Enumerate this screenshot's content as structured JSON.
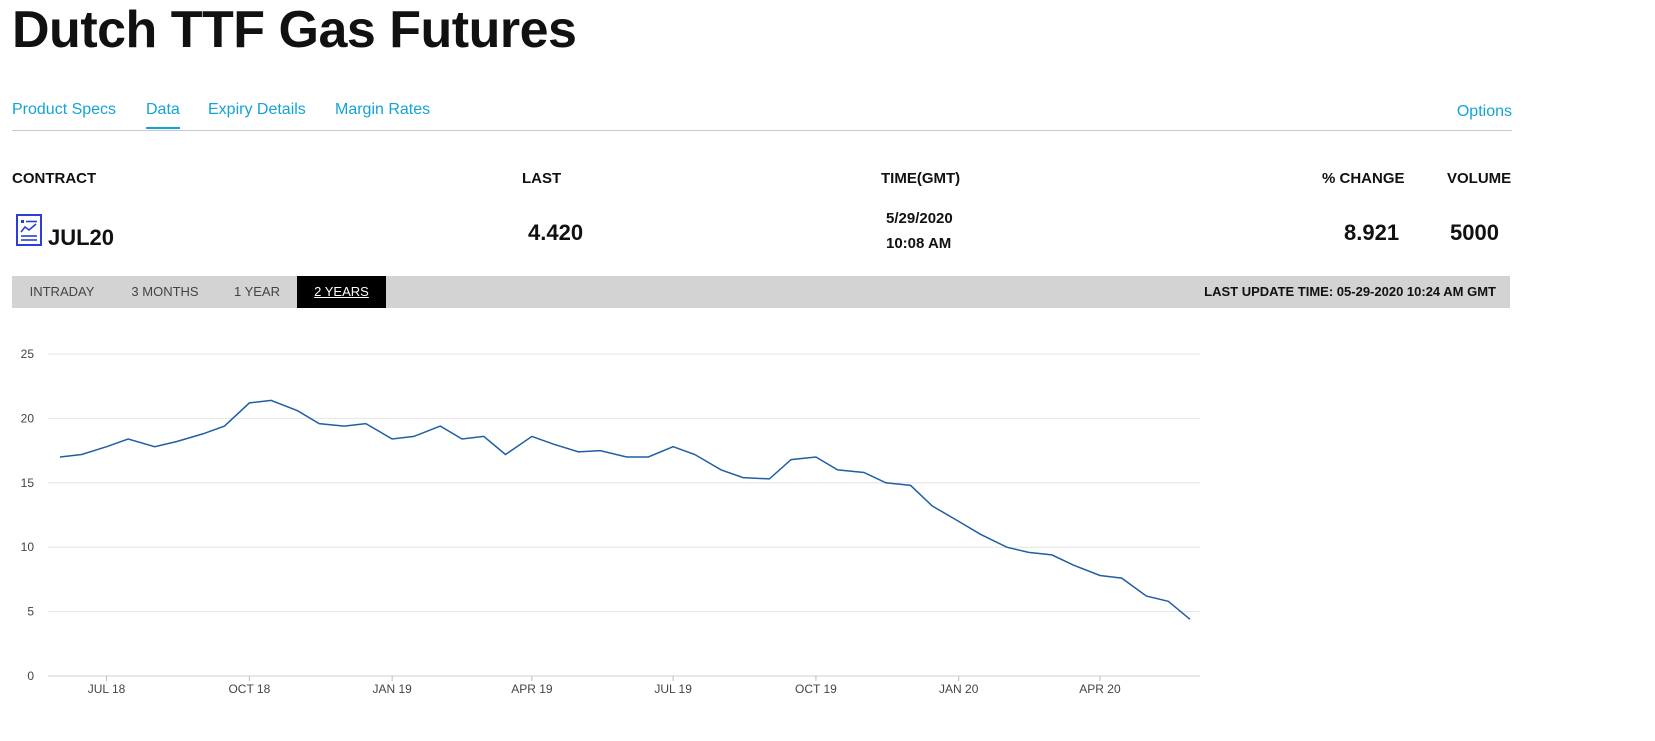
{
  "page": {
    "title": "Dutch TTF Gas Futures"
  },
  "tabs": [
    {
      "label": "Product Specs",
      "active": false
    },
    {
      "label": "Data",
      "active": true
    },
    {
      "label": "Expiry Details",
      "active": false
    },
    {
      "label": "Margin Rates",
      "active": false
    }
  ],
  "options_label": "Options",
  "table": {
    "headers": {
      "contract": "CONTRACT",
      "last": "LAST",
      "time": "TIME(GMT)",
      "pct_change": "% CHANGE",
      "volume": "VOLUME"
    },
    "row": {
      "icon": "report-document-icon",
      "contract": "JUL20",
      "last": "4.420",
      "time_date": "5/29/2020",
      "time_clock": "10:08 AM",
      "pct_change": "8.921",
      "volume": "5000"
    }
  },
  "range_buttons": [
    {
      "label": "INTRADAY",
      "active": false
    },
    {
      "label": "3 MONTHS",
      "active": false
    },
    {
      "label": "1 YEAR",
      "active": false
    },
    {
      "label": "2 YEARS",
      "active": true
    }
  ],
  "last_update": "LAST UPDATE TIME: 05-29-2020 10:24 AM GMT",
  "colors": {
    "accent": "#13a3d6",
    "line": "#1f5fa3",
    "grid": "#e4e4e4",
    "range_bar": "#d3d3d3"
  },
  "chart_data": {
    "type": "line",
    "ylim": [
      0,
      25
    ],
    "yticks": [
      0,
      5,
      10,
      15,
      20,
      25
    ],
    "xlim": [
      "2018-06-01",
      "2020-05-29"
    ],
    "xticks": [
      {
        "label": "JUL 18",
        "date": "2018-07-01"
      },
      {
        "label": "OCT 18",
        "date": "2018-10-01"
      },
      {
        "label": "JAN 19",
        "date": "2019-01-01"
      },
      {
        "label": "APR 19",
        "date": "2019-04-01"
      },
      {
        "label": "JUL 19",
        "date": "2019-07-01"
      },
      {
        "label": "OCT 19",
        "date": "2019-10-01"
      },
      {
        "label": "JAN 20",
        "date": "2020-01-01"
      },
      {
        "label": "APR 20",
        "date": "2020-04-01"
      }
    ],
    "grid": true,
    "series": [
      {
        "x": [
          "2018-06-01",
          "2018-06-15",
          "2018-07-01",
          "2018-07-15",
          "2018-08-01",
          "2018-08-15",
          "2018-09-01",
          "2018-09-15",
          "2018-10-01",
          "2018-10-15",
          "2018-11-01",
          "2018-11-15",
          "2018-12-01",
          "2018-12-15",
          "2019-01-01",
          "2019-01-15",
          "2019-02-01",
          "2019-02-15",
          "2019-03-01",
          "2019-03-15",
          "2019-04-01",
          "2019-04-15",
          "2019-05-01",
          "2019-05-15",
          "2019-06-01",
          "2019-06-15",
          "2019-07-01",
          "2019-07-15",
          "2019-08-01",
          "2019-08-15",
          "2019-09-01",
          "2019-09-15",
          "2019-10-01",
          "2019-10-15",
          "2019-11-01",
          "2019-11-15",
          "2019-12-01",
          "2019-12-15",
          "2020-01-01",
          "2020-01-15",
          "2020-02-01",
          "2020-02-15",
          "2020-03-01",
          "2020-03-15",
          "2020-04-01",
          "2020-04-15",
          "2020-05-01",
          "2020-05-15",
          "2020-05-29"
        ],
        "y": [
          17.0,
          17.2,
          17.8,
          18.4,
          17.8,
          18.2,
          18.8,
          19.4,
          21.2,
          21.4,
          20.6,
          19.6,
          19.4,
          19.6,
          18.4,
          18.6,
          19.4,
          18.4,
          18.6,
          17.2,
          18.6,
          18.0,
          17.4,
          17.5,
          17.0,
          17.0,
          17.8,
          17.2,
          16.0,
          15.4,
          15.3,
          16.8,
          17.0,
          16.0,
          15.8,
          15.0,
          14.8,
          13.2,
          12.0,
          11.0,
          10.0,
          9.6,
          9.4,
          8.6,
          7.8,
          7.6,
          6.2,
          5.8,
          4.4
        ]
      }
    ]
  }
}
